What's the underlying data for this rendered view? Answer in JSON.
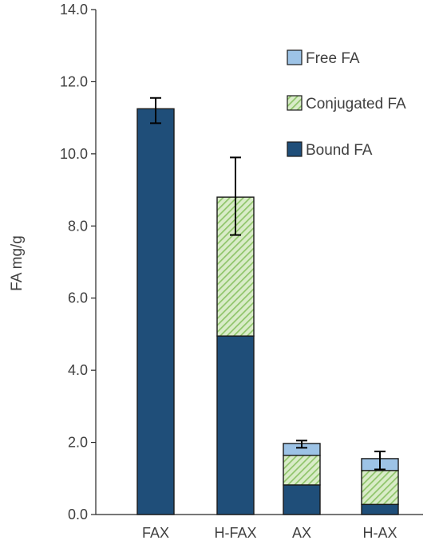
{
  "chart_data": {
    "type": "bar",
    "stacked": true,
    "title": "",
    "xlabel": "",
    "ylabel": "FA mg/g",
    "ylim": [
      0,
      14
    ],
    "yticks": [
      "0.0",
      "2.0",
      "4.0",
      "6.0",
      "8.0",
      "10.0",
      "12.0",
      "14.0"
    ],
    "grid": false,
    "legend_position": "top-right",
    "categories": [
      "FAX",
      "H-FAX",
      "AX",
      "H-AX"
    ],
    "series": [
      {
        "name": "Bound FA",
        "values": [
          11.25,
          4.95,
          0.82,
          0.28
        ],
        "color": "#1f4e79",
        "pattern": "solid"
      },
      {
        "name": "Conjugated FA",
        "values": [
          0,
          3.85,
          0.82,
          0.94
        ],
        "color": "#a9d18e",
        "pattern": "diagonal-hatch"
      },
      {
        "name": "Free FA",
        "values": [
          0,
          0,
          0.33,
          0.33
        ],
        "color": "#9dc3e6",
        "pattern": "solid"
      }
    ],
    "legend_order": [
      "Free FA",
      "Conjugated FA",
      "Bound FA"
    ],
    "error_bars": [
      {
        "category": "FAX",
        "center": 11.25,
        "low": 10.85,
        "high": 11.55
      },
      {
        "category": "H-FAX",
        "center": 8.8,
        "low": 7.75,
        "high": 9.9
      },
      {
        "category": "AX",
        "center": 1.95,
        "low": 1.85,
        "high": 2.05
      },
      {
        "category": "H-AX",
        "center": 1.5,
        "low": 1.25,
        "high": 1.75
      }
    ]
  }
}
